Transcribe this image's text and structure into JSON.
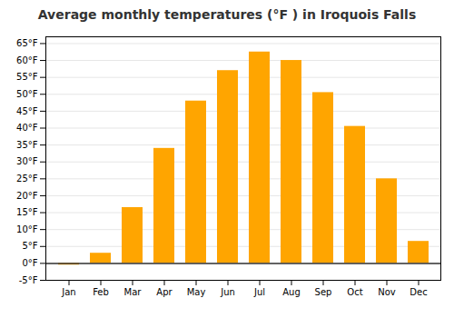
{
  "chart_data": {
    "type": "bar",
    "title": "Average monthly temperatures (°F ) in Iroquois Falls",
    "categories": [
      "Jan",
      "Feb",
      "Mar",
      "Apr",
      "May",
      "Jun",
      "Jul",
      "Aug",
      "Sep",
      "Oct",
      "Nov",
      "Dec"
    ],
    "values": [
      -0.5,
      3,
      16.5,
      34,
      48,
      57,
      62.5,
      60,
      50.5,
      40.5,
      25,
      6.5
    ],
    "color": "#FFA500",
    "ylim": [
      -5,
      67
    ],
    "yticks": [
      {
        "value": -5,
        "label": "-5°F"
      },
      {
        "value": 0,
        "label": "0°F"
      },
      {
        "value": 5,
        "label": "5°F"
      },
      {
        "value": 10,
        "label": "10°F"
      },
      {
        "value": 15,
        "label": "15°F"
      },
      {
        "value": 20,
        "label": "20°F"
      },
      {
        "value": 25,
        "label": "25°F"
      },
      {
        "value": 30,
        "label": "30°F"
      },
      {
        "value": 35,
        "label": "35°F"
      },
      {
        "value": 40,
        "label": "40°F"
      },
      {
        "value": 45,
        "label": "45°F"
      },
      {
        "value": 50,
        "label": "50°F"
      },
      {
        "value": 55,
        "label": "55°F"
      },
      {
        "value": 60,
        "label": "60°F"
      },
      {
        "value": 65,
        "label": "65°F"
      }
    ],
    "grid": true
  }
}
